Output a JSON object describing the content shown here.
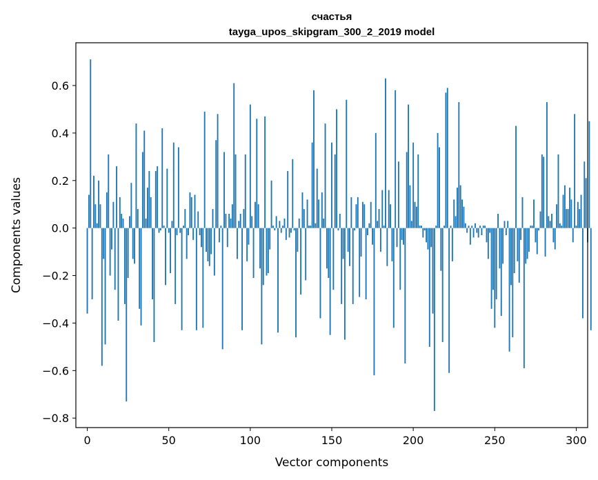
{
  "chart_data": {
    "type": "bar",
    "title": "счастья",
    "subtitle": "tayga_upos_skipgram_300_2_2019 model",
    "xlabel": "Vector components",
    "ylabel": "Components values",
    "xlim": [
      -7,
      307
    ],
    "ylim": [
      -0.84,
      0.78
    ],
    "x_ticks": [
      0,
      50,
      100,
      150,
      200,
      250,
      300
    ],
    "x_tick_labels": [
      "0",
      "50",
      "100",
      "150",
      "200",
      "250",
      "300"
    ],
    "y_ticks": [
      -0.8,
      -0.6,
      -0.4,
      -0.2,
      0.0,
      0.2,
      0.4,
      0.6
    ],
    "y_tick_labels": [
      "−0.8",
      "−0.6",
      "−0.4",
      "−0.2",
      "0.0",
      "0.2",
      "0.4",
      "0.6"
    ],
    "grid": false,
    "series": [
      {
        "name": "components",
        "color": "#1f77b4",
        "values": [
          -0.36,
          0.14,
          0.71,
          -0.3,
          0.22,
          0.1,
          0.02,
          0.2,
          0.1,
          -0.58,
          -0.13,
          -0.49,
          0.15,
          0.31,
          -0.2,
          -0.09,
          0.11,
          -0.26,
          0.26,
          -0.39,
          0.13,
          0.06,
          0.04,
          -0.32,
          -0.73,
          -0.21,
          0.05,
          0.19,
          -0.13,
          -0.15,
          0.44,
          0.08,
          -0.34,
          -0.41,
          0.32,
          0.41,
          0.04,
          0.17,
          0.24,
          0.13,
          -0.3,
          -0.48,
          0.24,
          0.26,
          -0.02,
          -0.01,
          0.42,
          0.01,
          -0.24,
          0.25,
          -0.02,
          -0.19,
          0.03,
          0.36,
          -0.32,
          -0.03,
          0.34,
          -0.02,
          -0.43,
          0.01,
          0.08,
          -0.13,
          -0.03,
          0.15,
          0.13,
          -0.05,
          0.14,
          -0.43,
          0.07,
          -0.03,
          -0.08,
          -0.42,
          0.49,
          -0.1,
          -0.14,
          -0.16,
          -0.11,
          0.08,
          -0.2,
          0.37,
          0.48,
          -0.06,
          0.01,
          -0.51,
          0.32,
          0.06,
          -0.08,
          0.06,
          0.04,
          0.1,
          0.61,
          0.31,
          -0.13,
          0.03,
          0.06,
          -0.43,
          0.08,
          0.31,
          -0.14,
          -0.07,
          0.52,
          0.05,
          -0.21,
          0.11,
          0.46,
          0.1,
          -0.17,
          -0.49,
          -0.24,
          0.47,
          -0.2,
          -0.19,
          -0.09,
          0.2,
          0.01,
          -0.01,
          0.05,
          -0.44,
          0.03,
          -0.02,
          0.01,
          0.04,
          -0.05,
          0.24,
          -0.04,
          -0.02,
          0.29,
          -0.01,
          -0.46,
          -0.1,
          0.04,
          -0.28,
          0.15,
          0.08,
          -0.22,
          0.12,
          0.01,
          0.01,
          0.36,
          0.58,
          0.02,
          0.25,
          0.12,
          -0.38,
          0.15,
          0.04,
          0.44,
          -0.17,
          -0.21,
          -0.45,
          0.36,
          -0.26,
          0.31,
          0.5,
          -0.01,
          0.06,
          -0.32,
          -0.13,
          -0.47,
          0.54,
          -0.1,
          -0.16,
          0.13,
          -0.32,
          -0.01,
          0.1,
          0.13,
          -0.29,
          -0.12,
          0.11,
          0.1,
          -0.3,
          -0.03,
          0.02,
          0.11,
          -0.07,
          -0.62,
          0.4,
          0.03,
          0.08,
          -0.1,
          0.16,
          0.01,
          0.63,
          -0.16,
          0.16,
          0.1,
          -0.14,
          -0.42,
          0.58,
          -0.08,
          0.28,
          -0.26,
          -0.05,
          -0.07,
          -0.57,
          0.32,
          0.52,
          0.18,
          0.03,
          0.36,
          0.11,
          0.09,
          0.31,
          0.01,
          0.01,
          -0.04,
          -0.01,
          -0.06,
          -0.09,
          -0.5,
          -0.08,
          -0.36,
          -0.77,
          0.01,
          0.4,
          0.34,
          -0.18,
          -0.48,
          0.01,
          0.57,
          0.59,
          -0.61,
          0.01,
          -0.14,
          0.12,
          0.05,
          0.17,
          0.53,
          0.18,
          0.12,
          0.09,
          0.02,
          -0.02,
          0.01,
          -0.07,
          0.01,
          -0.04,
          0.02,
          -0.02,
          -0.04,
          0.01,
          -0.03,
          0.01,
          0.01,
          -0.06,
          -0.13,
          -0.02,
          -0.34,
          -0.26,
          -0.42,
          -0.3,
          0.06,
          -0.17,
          -0.37,
          -0.15,
          0.03,
          -0.03,
          0.03,
          -0.52,
          -0.24,
          -0.46,
          -0.19,
          0.43,
          -0.14,
          -0.23,
          -0.05,
          0.13,
          -0.59,
          -0.15,
          -0.13,
          -0.1,
          0.01,
          0.01,
          0.12,
          -0.06,
          -0.11,
          -0.01,
          0.07,
          0.31,
          0.3,
          -0.12,
          0.53,
          0.05,
          0.03,
          0.06,
          -0.06,
          -0.09,
          0.1,
          0.31,
          0.02,
          0.01,
          0.14,
          0.18,
          0.08,
          0.08,
          0.17,
          0.12,
          -0.06,
          0.48,
          0.01,
          0.11,
          0.08,
          0.14,
          -0.38,
          0.28,
          0.21,
          -0.06,
          0.45,
          -0.43
        ]
      }
    ]
  }
}
